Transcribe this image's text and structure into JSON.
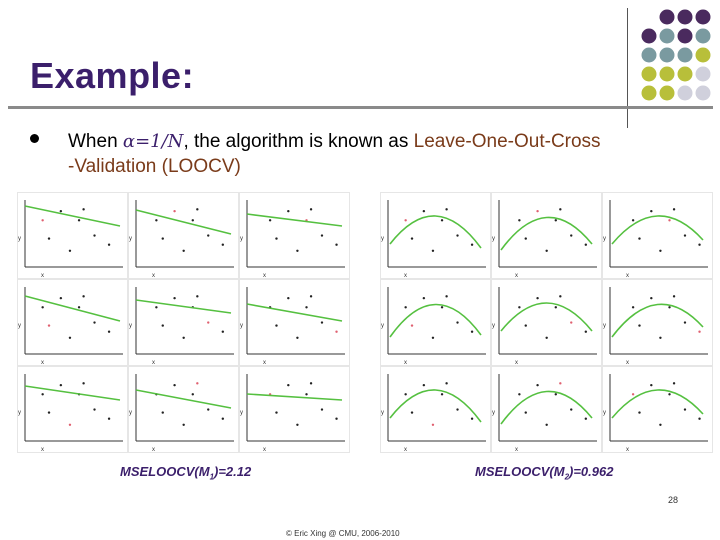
{
  "slide": {
    "title": "Example:",
    "bullet": {
      "prefix": "When ",
      "formula": "α=1/N",
      "middle": ", the algorithm is known as ",
      "accent": "Leave-One-Out-Cross",
      "line2": "-Validation (LOOCV)"
    },
    "axis_labels": {
      "x": "x",
      "y": "y"
    },
    "mse_left": {
      "pre": "MSELOOCV(M",
      "sub": "1",
      "post": ")=2.12"
    },
    "mse_right": {
      "pre": "MSELOOCV(M",
      "sub": "2",
      "post": ")=0.962"
    },
    "page_number": "28",
    "footer": "© Eric Xing @ CMU, 2006-2010"
  },
  "colors": {
    "title": "#3b1f6b",
    "accent_text": "#7a3b1a",
    "fit_line": "#55c040",
    "data_point": "#222222",
    "held_out_point": "#e06070",
    "dots": [
      "#4a2a5e",
      "#7a9aa0",
      "#b8bf3a",
      "#d0d0dc"
    ]
  },
  "decoration": {
    "dot_grid": [
      [
        "#4a2a5e",
        "#4a2a5e",
        "#4a2a5e"
      ],
      [
        "#4a2a5e",
        "#7a9aa0",
        "#4a2a5e",
        "#7a9aa0"
      ],
      [
        "#7a9aa0",
        "#7a9aa0",
        "#7a9aa0",
        "#b8bf3a"
      ],
      [
        "#b8bf3a",
        "#b8bf3a",
        "#b8bf3a",
        "#d0d0dc"
      ],
      [
        "#b8bf3a",
        "#b8bf3a",
        "#d0d0dc",
        "#d0d0dc"
      ]
    ]
  },
  "chart_data": [
    {
      "type": "scatter",
      "fit": "linear",
      "panels": 9,
      "title": "",
      "xlabel": "x",
      "ylabel": "y",
      "annotation": "MSELOOCV(M1)=2.12"
    },
    {
      "type": "scatter",
      "fit": "quadratic",
      "panels": 9,
      "title": "",
      "xlabel": "x",
      "ylabel": "y",
      "annotation": "MSELOOCV(M2)=0.962"
    }
  ]
}
